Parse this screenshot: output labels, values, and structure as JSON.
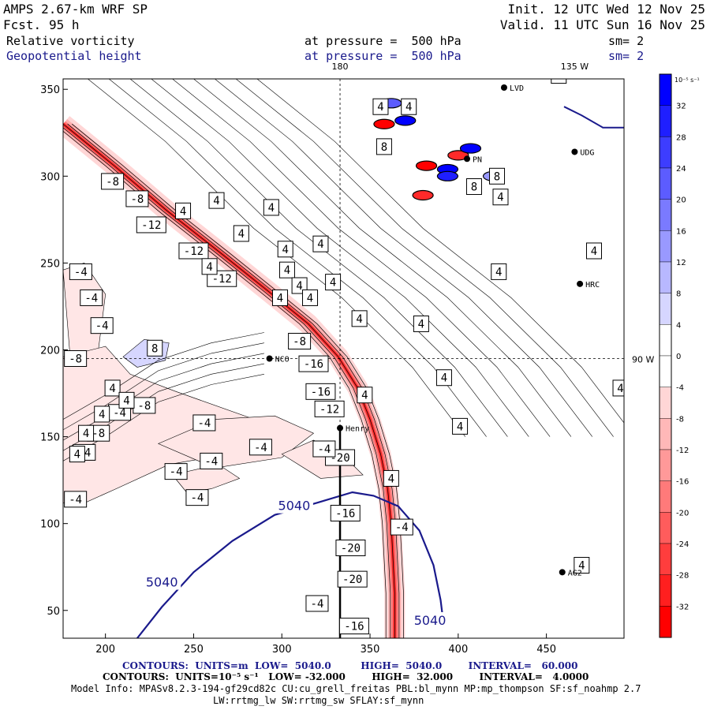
{
  "header": {
    "model_title": "AMPS 2.67-km WRF SP",
    "fcst_label": "Fcst.",
    "fcst_value": "95 h",
    "init": "Init. 12 UTC Wed 12 Nov 25",
    "valid": "Valid. 11 UTC Sun 16 Nov 25",
    "field1_name": "Relative vorticity",
    "field1_level": "at pressure =  500 hPa",
    "field1_sm": "sm= 2",
    "field2_name": "Geopotential height",
    "field2_level": "at pressure =  500 hPa",
    "field2_sm": "sm= 2"
  },
  "footer": {
    "contours_height": "CONTOURS:  UNITS=m  LOW=  5040.0         HIGH=  5040.0        INTERVAL=   60.000",
    "contours_vort": "CONTOURS:  UNITS=10⁻⁵ s⁻¹   LOW= -32.000        HIGH=  32.000        INTERVAL=   4.0000",
    "model_info": "Model Info: MPASv8.2.3-194-gf29cd82c CU:cu_grell_freitas PBL:bl_mynn MP:mp_thompson SF:sf_noahmp 2.7",
    "model_info2": "LW:rrtmg_lw SW:rrtmg_sw SFLAY:sf_mynn"
  },
  "chart_data": {
    "type": "heatmap",
    "title": "Relative vorticity and Geopotential height at 500 hPa",
    "x_ticks": [
      200,
      250,
      300,
      350,
      400,
      450
    ],
    "y_ticks": [
      50,
      100,
      150,
      200,
      250,
      300,
      350
    ],
    "xlim": [
      176,
      494
    ],
    "ylim": [
      34,
      356
    ],
    "map_labels": {
      "lon_180": "180",
      "lon_135w": "135 W",
      "lon_90w": "90 W"
    },
    "stations": [
      {
        "name": "NCO",
        "x": 293,
        "y": 195
      },
      {
        "name": "Henry",
        "x": 333,
        "y": 155
      },
      {
        "name": "HRC",
        "x": 469,
        "y": 238
      },
      {
        "name": "AG2",
        "x": 459,
        "y": 72
      },
      {
        "name": "UDG",
        "x": 466,
        "y": 314
      },
      {
        "name": "PN",
        "x": 405,
        "y": 310
      },
      {
        "name": "LVD",
        "x": 426,
        "y": 351
      }
    ],
    "colorbar": {
      "units": "10⁻⁵ s⁻¹",
      "levels": [
        32,
        28,
        24,
        20,
        16,
        12,
        8,
        4,
        0,
        -4,
        -8,
        -12,
        -16,
        -20,
        -24,
        -28,
        -32
      ],
      "colors": [
        "#0000ff",
        "#1f1fff",
        "#3d3dff",
        "#5c5cff",
        "#7a7aff",
        "#9999ff",
        "#b8b8ff",
        "#d6d6ff",
        "#ffffff",
        "#ffffff",
        "#ffd6d6",
        "#ffb8b8",
        "#ff9999",
        "#ff7a7a",
        "#ff5c5c",
        "#ff3d3d",
        "#ff1f1f",
        "#ff0000"
      ]
    },
    "height_contour": {
      "value": "5040",
      "points": [
        [
          218,
          34
        ],
        [
          232,
          52
        ],
        [
          250,
          72
        ],
        [
          272,
          90
        ],
        [
          296,
          105
        ],
        [
          320,
          112
        ],
        [
          340,
          118
        ],
        [
          352,
          116
        ],
        [
          366,
          110
        ],
        [
          378,
          96
        ],
        [
          386,
          76
        ],
        [
          390,
          56
        ],
        [
          392,
          40
        ]
      ]
    },
    "vorticity_band_centerline": [
      [
        176,
        330
      ],
      [
        205,
        306
      ],
      [
        235,
        280
      ],
      [
        265,
        256
      ],
      [
        292,
        234
      ],
      [
        315,
        215
      ],
      [
        332,
        196
      ],
      [
        343,
        178
      ],
      [
        350,
        160
      ],
      [
        356,
        140
      ],
      [
        360,
        120
      ],
      [
        362,
        100
      ],
      [
        363,
        80
      ],
      [
        364,
        60
      ],
      [
        364,
        34
      ]
    ],
    "vorticity_labels": [
      {
        "text": "-8",
        "x": 204,
        "y": 297
      },
      {
        "text": "-8",
        "x": 218,
        "y": 287
      },
      {
        "text": "-12",
        "x": 226,
        "y": 272
      },
      {
        "text": "-12",
        "x": 250,
        "y": 257
      },
      {
        "text": "-12",
        "x": 266,
        "y": 241
      },
      {
        "text": "-8",
        "x": 310,
        "y": 205
      },
      {
        "text": "-16",
        "x": 318,
        "y": 192
      },
      {
        "text": "-16",
        "x": 322,
        "y": 176
      },
      {
        "text": "-12",
        "x": 327,
        "y": 166
      },
      {
        "text": "-20",
        "x": 333,
        "y": 138
      },
      {
        "text": "-16",
        "x": 336,
        "y": 106
      },
      {
        "text": "-20",
        "x": 339,
        "y": 86
      },
      {
        "text": "-20",
        "x": 340,
        "y": 68
      },
      {
        "text": "-16",
        "x": 341,
        "y": 41
      },
      {
        "text": "-4",
        "x": 324,
        "y": 143
      },
      {
        "text": "-4",
        "x": 320,
        "y": 54
      },
      {
        "text": "-4",
        "x": 288,
        "y": 144
      },
      {
        "text": "-4",
        "x": 260,
        "y": 136
      },
      {
        "text": "-4",
        "x": 240,
        "y": 130
      },
      {
        "text": "-4",
        "x": 252,
        "y": 115
      },
      {
        "text": "-4",
        "x": 256,
        "y": 158
      },
      {
        "text": "-8",
        "x": 222,
        "y": 168
      },
      {
        "text": "-4",
        "x": 208,
        "y": 164
      },
      {
        "text": "-8",
        "x": 196,
        "y": 152
      },
      {
        "text": "-4",
        "x": 188,
        "y": 141
      },
      {
        "text": "-4",
        "x": 183,
        "y": 114
      },
      {
        "text": "-8",
        "x": 183,
        "y": 195
      },
      {
        "text": "-4",
        "x": 198,
        "y": 214
      },
      {
        "text": "-4",
        "x": 192,
        "y": 230
      },
      {
        "text": "-4",
        "x": 186,
        "y": 245
      },
      {
        "text": "-4",
        "x": 368,
        "y": 98
      },
      {
        "text": "8",
        "x": 228,
        "y": 201
      },
      {
        "text": "4",
        "x": 204,
        "y": 178
      },
      {
        "text": "4",
        "x": 212,
        "y": 171
      },
      {
        "text": "4",
        "x": 198,
        "y": 163
      },
      {
        "text": "4",
        "x": 189,
        "y": 152
      },
      {
        "text": "4",
        "x": 184,
        "y": 140
      },
      {
        "text": "4",
        "x": 259,
        "y": 248
      },
      {
        "text": "4",
        "x": 277,
        "y": 267
      },
      {
        "text": "4",
        "x": 299,
        "y": 230
      },
      {
        "text": "4",
        "x": 303,
        "y": 246
      },
      {
        "text": "4",
        "x": 310,
        "y": 237
      },
      {
        "text": "4",
        "x": 316,
        "y": 230
      },
      {
        "text": "4",
        "x": 244,
        "y": 280
      },
      {
        "text": "4",
        "x": 263,
        "y": 286
      },
      {
        "text": "4",
        "x": 294,
        "y": 282
      },
      {
        "text": "4",
        "x": 302,
        "y": 258
      },
      {
        "text": "4",
        "x": 322,
        "y": 261
      },
      {
        "text": "4",
        "x": 329,
        "y": 239
      },
      {
        "text": "4",
        "x": 344,
        "y": 218
      },
      {
        "text": "4",
        "x": 379,
        "y": 215
      },
      {
        "text": "4",
        "x": 392,
        "y": 184
      },
      {
        "text": "4",
        "x": 401,
        "y": 156
      },
      {
        "text": "4",
        "x": 362,
        "y": 126
      },
      {
        "text": "4",
        "x": 347,
        "y": 174
      },
      {
        "text": "4",
        "x": 424,
        "y": 288
      },
      {
        "text": "4",
        "x": 423,
        "y": 245
      },
      {
        "text": "4",
        "x": 457,
        "y": 358
      },
      {
        "text": "4",
        "x": 470,
        "y": 76
      },
      {
        "text": "4",
        "x": 477,
        "y": 257
      },
      {
        "text": "4",
        "x": 492,
        "y": 178
      },
      {
        "text": "4",
        "x": 356,
        "y": 340
      },
      {
        "text": "4",
        "x": 372,
        "y": 340
      },
      {
        "text": "8",
        "x": 358,
        "y": 317
      },
      {
        "text": "8",
        "x": 409,
        "y": 294
      },
      {
        "text": "8",
        "x": 422,
        "y": 300
      }
    ]
  }
}
